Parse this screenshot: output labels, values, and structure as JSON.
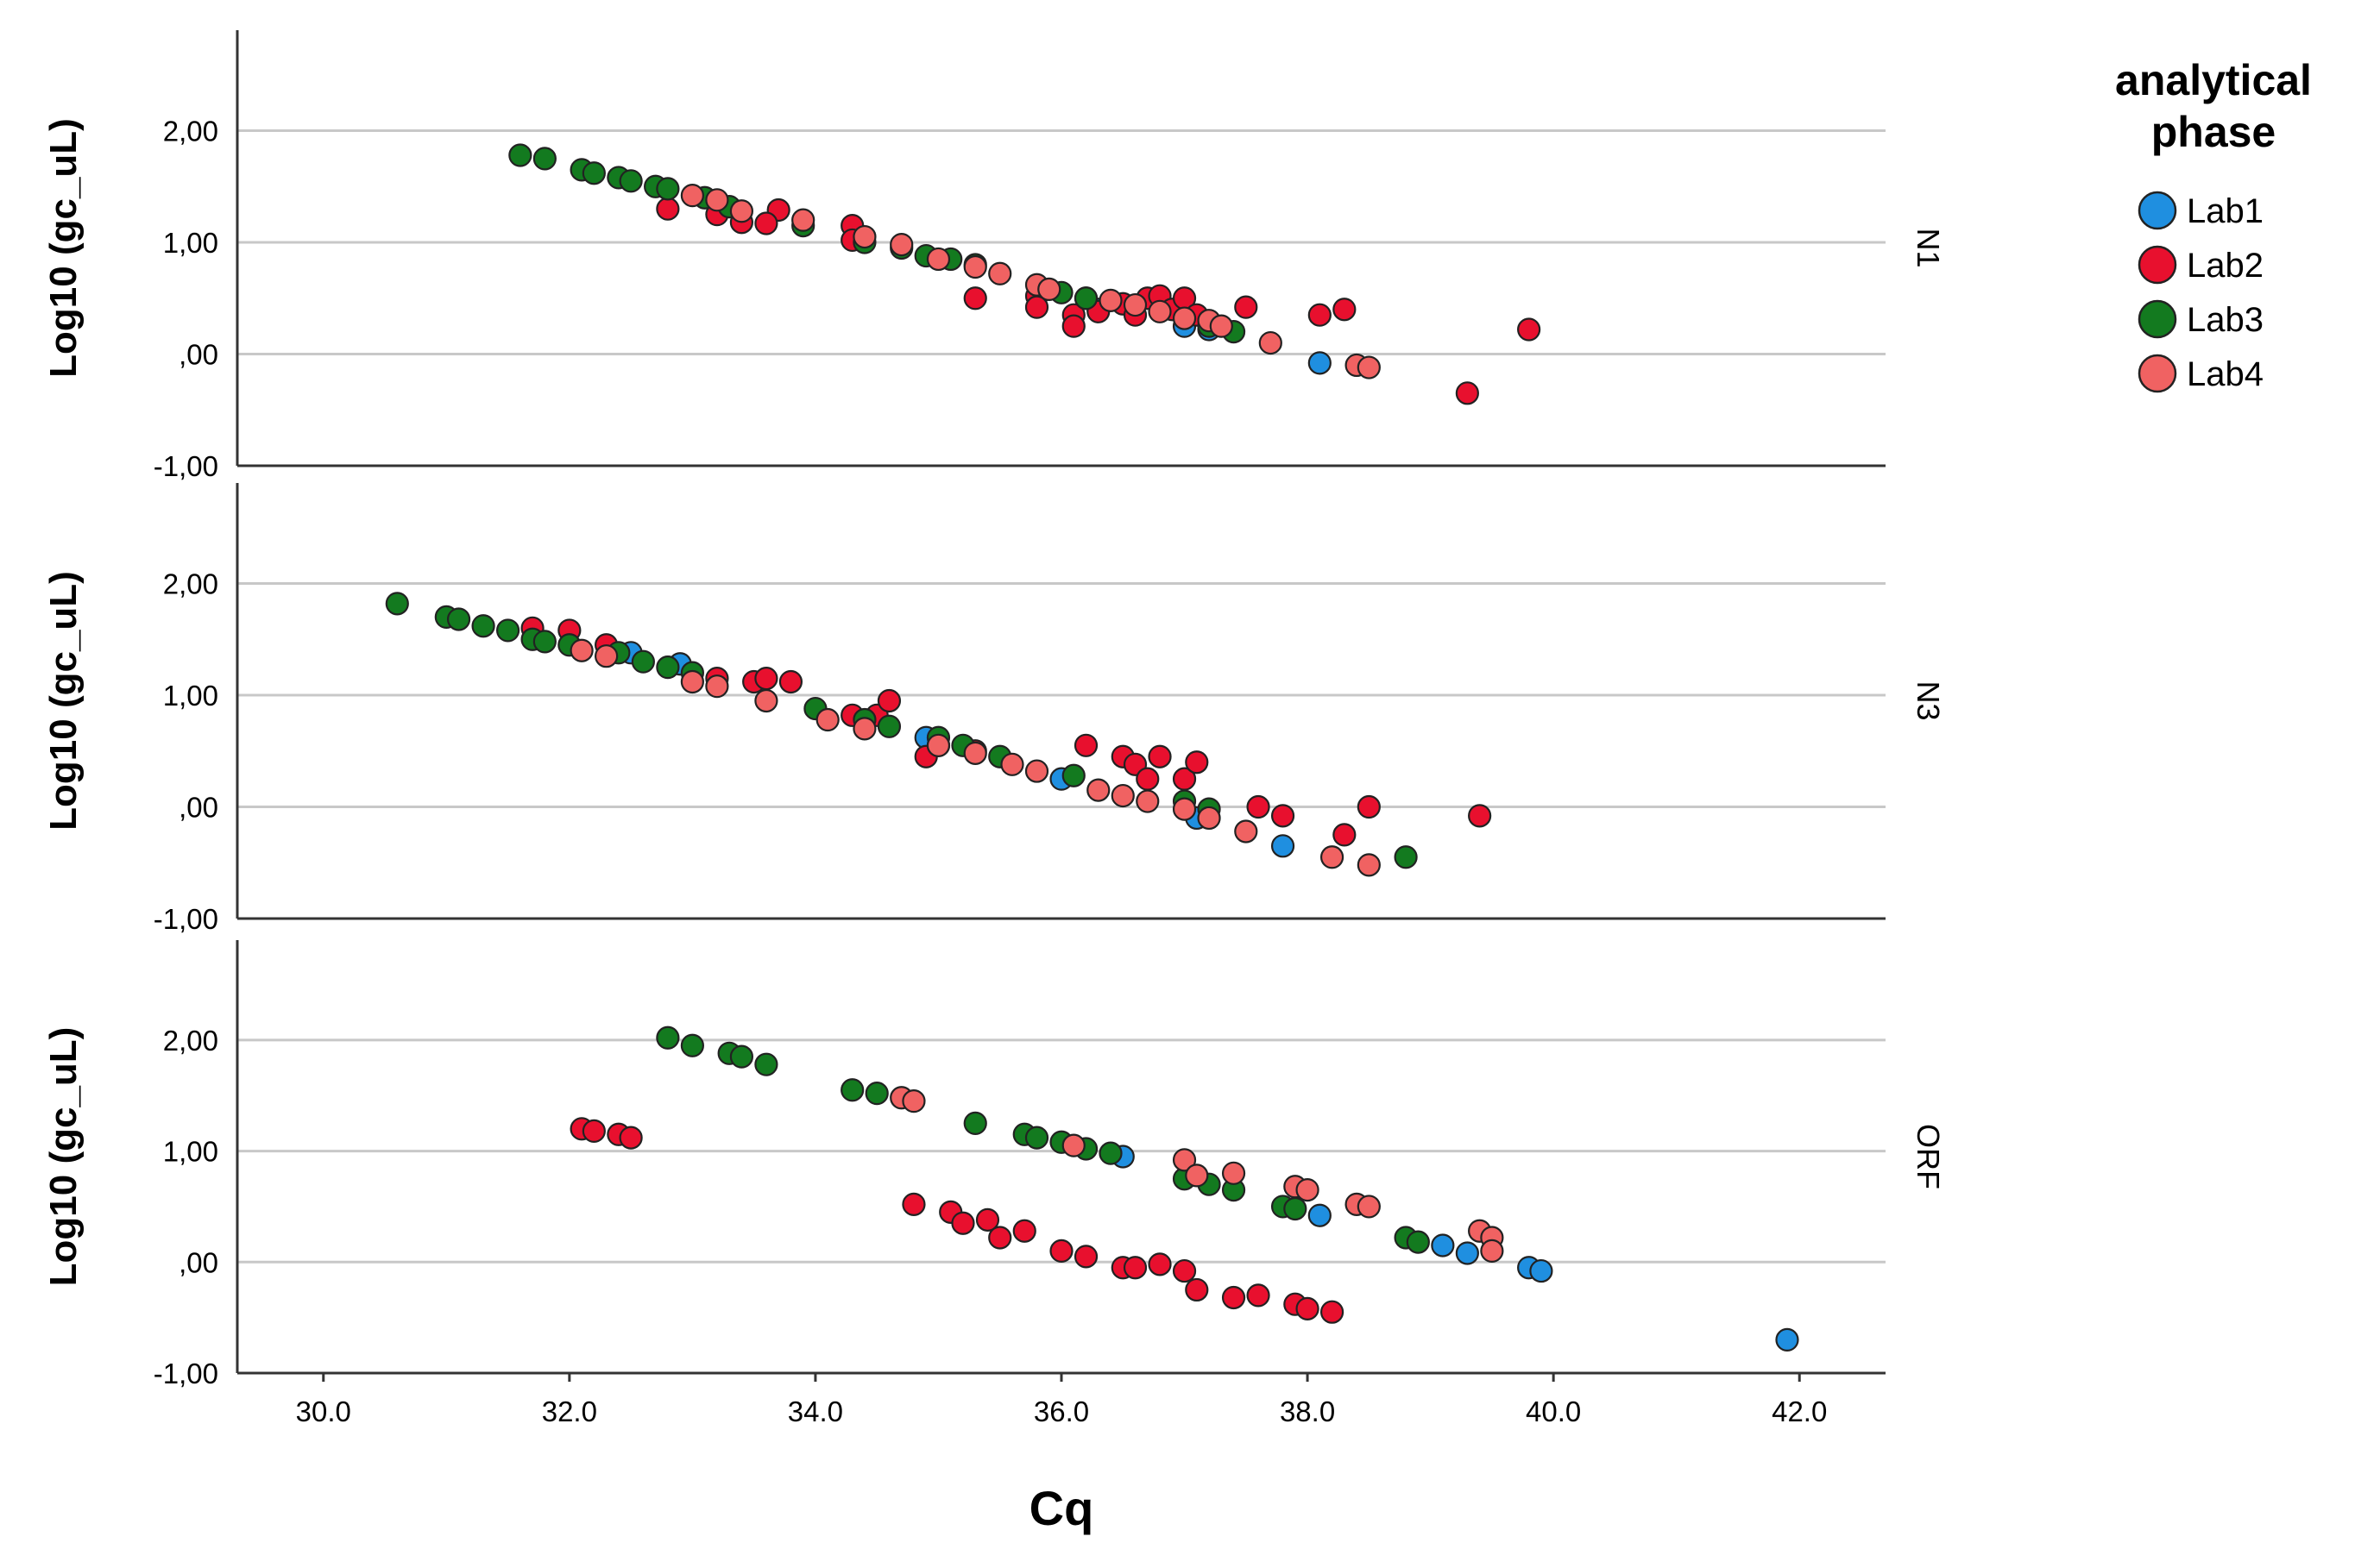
{
  "chart_data": {
    "type": "scatter",
    "xlabel": "Cq",
    "x_ticks": [
      "30.0",
      "32.0",
      "34.0",
      "36.0",
      "38.0",
      "40.0",
      "42.0"
    ],
    "xlim": [
      29.3,
      42.7
    ],
    "ylim": [
      -1.0,
      2.9
    ],
    "y_ticks": [
      "2,00",
      "1,00",
      ",00",
      "-1,00"
    ],
    "y_tick_values": [
      2,
      1,
      0,
      -1
    ],
    "legend": {
      "title_lines": [
        "analytical",
        "phase"
      ],
      "entries": [
        {
          "name": "Lab1",
          "color": "#1f8fe0"
        },
        {
          "name": "Lab2",
          "color": "#e8102e"
        },
        {
          "name": "Lab3",
          "color": "#137a1f"
        },
        {
          "name": "Lab4",
          "color": "#f06262"
        }
      ]
    },
    "panels": [
      {
        "facet": "N1",
        "ylabel": "Log10 (gc_uL)",
        "series": [
          {
            "name": "Lab1",
            "points": [
              [
                36.3,
                0.4
              ],
              [
                37.2,
                0.22
              ],
              [
                38.1,
                -0.08
              ],
              [
                37.0,
                0.25
              ]
            ]
          },
          {
            "name": "Lab2",
            "points": [
              [
                32.8,
                1.3
              ],
              [
                33.2,
                1.25
              ],
              [
                33.4,
                1.18
              ],
              [
                33.7,
                1.29
              ],
              [
                33.6,
                1.17
              ],
              [
                34.3,
                1.15
              ],
              [
                34.3,
                1.02
              ],
              [
                35.3,
                0.5
              ],
              [
                35.8,
                0.52
              ],
              [
                35.8,
                0.42
              ],
              [
                36.1,
                0.35
              ],
              [
                36.1,
                0.25
              ],
              [
                36.2,
                0.5
              ],
              [
                36.3,
                0.38
              ],
              [
                36.5,
                0.45
              ],
              [
                36.6,
                0.35
              ],
              [
                36.7,
                0.5
              ],
              [
                36.8,
                0.52
              ],
              [
                36.9,
                0.4
              ],
              [
                37.0,
                0.5
              ],
              [
                37.1,
                0.35
              ],
              [
                37.5,
                0.42
              ],
              [
                38.1,
                0.35
              ],
              [
                38.3,
                0.4
              ],
              [
                39.3,
                -0.35
              ],
              [
                39.8,
                0.22
              ]
            ]
          },
          {
            "name": "Lab3",
            "points": [
              [
                31.6,
                1.78
              ],
              [
                31.8,
                1.75
              ],
              [
                32.1,
                1.65
              ],
              [
                32.2,
                1.62
              ],
              [
                32.4,
                1.58
              ],
              [
                32.5,
                1.55
              ],
              [
                32.7,
                1.5
              ],
              [
                32.8,
                1.48
              ],
              [
                33.1,
                1.4
              ],
              [
                33.3,
                1.32
              ],
              [
                33.9,
                1.15
              ],
              [
                34.4,
                1.0
              ],
              [
                34.7,
                0.95
              ],
              [
                34.9,
                0.88
              ],
              [
                35.1,
                0.85
              ],
              [
                35.3,
                0.8
              ],
              [
                36.0,
                0.55
              ],
              [
                36.2,
                0.5
              ],
              [
                37.2,
                0.25
              ],
              [
                37.4,
                0.2
              ]
            ]
          },
          {
            "name": "Lab4",
            "points": [
              [
                33.0,
                1.42
              ],
              [
                33.2,
                1.38
              ],
              [
                33.4,
                1.28
              ],
              [
                33.9,
                1.2
              ],
              [
                34.4,
                1.05
              ],
              [
                34.7,
                0.98
              ],
              [
                35.0,
                0.85
              ],
              [
                35.3,
                0.78
              ],
              [
                35.5,
                0.72
              ],
              [
                35.8,
                0.62
              ],
              [
                35.9,
                0.58
              ],
              [
                36.4,
                0.48
              ],
              [
                36.6,
                0.44
              ],
              [
                36.8,
                0.38
              ],
              [
                37.0,
                0.32
              ],
              [
                37.2,
                0.3
              ],
              [
                37.3,
                0.25
              ],
              [
                37.7,
                0.1
              ],
              [
                38.4,
                -0.1
              ],
              [
                38.5,
                -0.12
              ]
            ]
          }
        ]
      },
      {
        "facet": "N3",
        "ylabel": "Log10 (gc_uL)",
        "series": [
          {
            "name": "Lab1",
            "points": [
              [
                32.5,
                1.38
              ],
              [
                32.9,
                1.28
              ],
              [
                34.9,
                0.62
              ],
              [
                36.0,
                0.25
              ],
              [
                37.1,
                -0.1
              ],
              [
                37.8,
                -0.35
              ]
            ]
          },
          {
            "name": "Lab2",
            "points": [
              [
                31.7,
                1.6
              ],
              [
                32.0,
                1.58
              ],
              [
                32.3,
                1.45
              ],
              [
                33.2,
                1.15
              ],
              [
                33.5,
                1.12
              ],
              [
                33.6,
                1.15
              ],
              [
                33.8,
                1.12
              ],
              [
                34.3,
                0.82
              ],
              [
                34.5,
                0.82
              ],
              [
                34.6,
                0.95
              ],
              [
                34.9,
                0.45
              ],
              [
                35.0,
                0.55
              ],
              [
                35.3,
                0.5
              ],
              [
                36.2,
                0.55
              ],
              [
                36.5,
                0.45
              ],
              [
                36.6,
                0.38
              ],
              [
                36.7,
                0.25
              ],
              [
                36.8,
                0.45
              ],
              [
                37.0,
                0.25
              ],
              [
                37.1,
                0.4
              ],
              [
                37.6,
                0.0
              ],
              [
                37.8,
                -0.08
              ],
              [
                38.3,
                -0.25
              ],
              [
                38.5,
                0.0
              ],
              [
                39.4,
                -0.08
              ]
            ]
          },
          {
            "name": "Lab3",
            "points": [
              [
                30.6,
                1.82
              ],
              [
                31.0,
                1.7
              ],
              [
                31.1,
                1.68
              ],
              [
                31.3,
                1.62
              ],
              [
                31.5,
                1.58
              ],
              [
                31.7,
                1.5
              ],
              [
                31.8,
                1.48
              ],
              [
                32.0,
                1.45
              ],
              [
                32.4,
                1.38
              ],
              [
                32.6,
                1.3
              ],
              [
                32.8,
                1.25
              ],
              [
                33.0,
                1.2
              ],
              [
                34.0,
                0.88
              ],
              [
                34.4,
                0.78
              ],
              [
                34.6,
                0.72
              ],
              [
                35.0,
                0.62
              ],
              [
                35.2,
                0.55
              ],
              [
                35.5,
                0.45
              ],
              [
                36.1,
                0.28
              ],
              [
                37.0,
                0.05
              ],
              [
                37.2,
                -0.02
              ],
              [
                38.8,
                -0.45
              ]
            ]
          },
          {
            "name": "Lab4",
            "points": [
              [
                32.1,
                1.4
              ],
              [
                32.3,
                1.35
              ],
              [
                33.0,
                1.12
              ],
              [
                33.2,
                1.08
              ],
              [
                33.6,
                0.95
              ],
              [
                34.1,
                0.78
              ],
              [
                34.4,
                0.7
              ],
              [
                35.0,
                0.55
              ],
              [
                35.3,
                0.48
              ],
              [
                35.6,
                0.38
              ],
              [
                35.8,
                0.32
              ],
              [
                36.3,
                0.15
              ],
              [
                36.5,
                0.1
              ],
              [
                36.7,
                0.05
              ],
              [
                37.0,
                -0.02
              ],
              [
                37.2,
                -0.1
              ],
              [
                37.5,
                -0.22
              ],
              [
                38.2,
                -0.45
              ],
              [
                38.5,
                -0.52
              ]
            ]
          }
        ]
      },
      {
        "facet": "ORF",
        "ylabel": "Log10 (gc_uL)",
        "series": [
          {
            "name": "Lab1",
            "points": [
              [
                36.5,
                0.95
              ],
              [
                38.1,
                0.42
              ],
              [
                39.1,
                0.15
              ],
              [
                39.3,
                0.08
              ],
              [
                39.8,
                -0.05
              ],
              [
                39.9,
                -0.08
              ],
              [
                41.9,
                -0.7
              ]
            ]
          },
          {
            "name": "Lab2",
            "points": [
              [
                32.1,
                1.2
              ],
              [
                32.2,
                1.18
              ],
              [
                32.4,
                1.15
              ],
              [
                32.5,
                1.12
              ],
              [
                34.8,
                0.52
              ],
              [
                35.1,
                0.45
              ],
              [
                35.2,
                0.35
              ],
              [
                35.4,
                0.38
              ],
              [
                35.5,
                0.22
              ],
              [
                35.7,
                0.28
              ],
              [
                36.0,
                0.1
              ],
              [
                36.2,
                0.05
              ],
              [
                36.5,
                -0.05
              ],
              [
                36.6,
                -0.05
              ],
              [
                36.8,
                -0.02
              ],
              [
                37.0,
                -0.08
              ],
              [
                37.1,
                -0.25
              ],
              [
                37.4,
                -0.32
              ],
              [
                37.6,
                -0.3
              ],
              [
                37.9,
                -0.38
              ],
              [
                38.0,
                -0.42
              ],
              [
                38.2,
                -0.45
              ]
            ]
          },
          {
            "name": "Lab3",
            "points": [
              [
                32.8,
                2.02
              ],
              [
                33.0,
                1.95
              ],
              [
                33.3,
                1.88
              ],
              [
                33.4,
                1.85
              ],
              [
                33.6,
                1.78
              ],
              [
                34.3,
                1.55
              ],
              [
                34.5,
                1.52
              ],
              [
                35.3,
                1.25
              ],
              [
                35.7,
                1.15
              ],
              [
                35.8,
                1.12
              ],
              [
                36.0,
                1.08
              ],
              [
                36.2,
                1.02
              ],
              [
                36.4,
                0.98
              ],
              [
                37.0,
                0.75
              ],
              [
                37.2,
                0.7
              ],
              [
                37.4,
                0.65
              ],
              [
                37.8,
                0.5
              ],
              [
                37.9,
                0.48
              ],
              [
                38.8,
                0.22
              ],
              [
                38.9,
                0.18
              ]
            ]
          },
          {
            "name": "Lab4",
            "points": [
              [
                34.7,
                1.48
              ],
              [
                34.8,
                1.45
              ],
              [
                36.1,
                1.05
              ],
              [
                37.0,
                0.92
              ],
              [
                37.1,
                0.78
              ],
              [
                37.4,
                0.8
              ],
              [
                37.9,
                0.68
              ],
              [
                38.0,
                0.65
              ],
              [
                38.4,
                0.52
              ],
              [
                38.5,
                0.5
              ],
              [
                39.4,
                0.28
              ],
              [
                39.5,
                0.22
              ],
              [
                39.5,
                0.1
              ]
            ]
          }
        ]
      }
    ]
  }
}
